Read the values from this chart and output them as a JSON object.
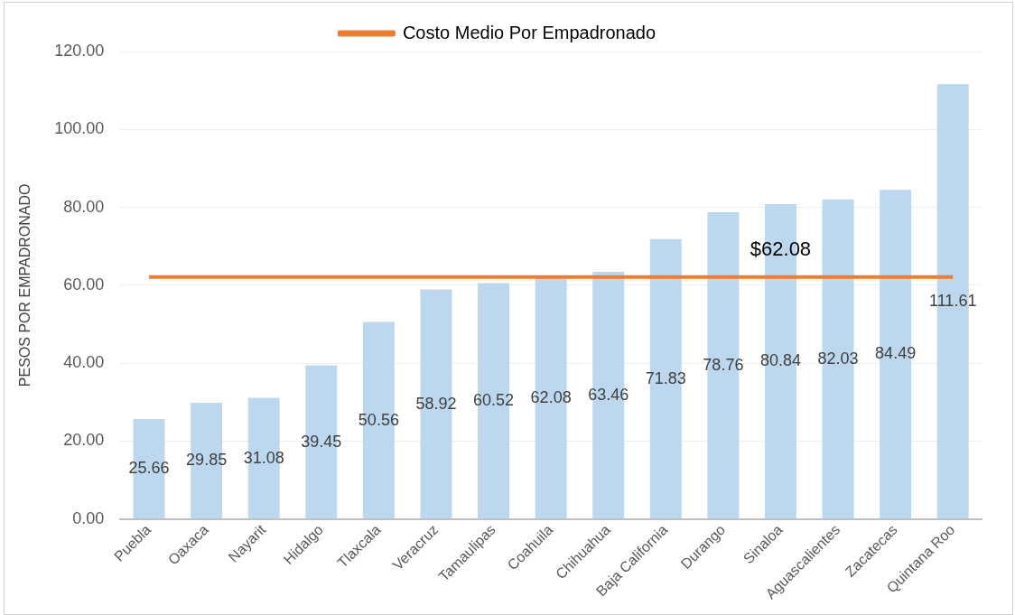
{
  "chart_data": {
    "type": "bar",
    "ylabel": "PESOS POR EMPADRONADO",
    "categories": [
      "Puebla",
      "Oaxaca",
      "Nayarit",
      "Hidalgo",
      "Tlaxcala",
      "Veracruz",
      "Tamaulipas",
      "Coahuila",
      "Chihuahua",
      "Baja California",
      "Durango",
      "Sinaloa",
      "Aguascalientes",
      "Zacatecas",
      "Quintana Roo"
    ],
    "series": [
      {
        "color": "#bdd7ee",
        "values": [
          25.66,
          29.85,
          31.08,
          39.45,
          50.56,
          58.92,
          60.52,
          62.08,
          63.46,
          71.83,
          78.76,
          80.84,
          82.03,
          84.49,
          111.61
        ],
        "data_labels": true
      },
      {
        "type": "line",
        "name": "Costo Medio Por Empadronado",
        "color": "#ed7d31",
        "marker": "none",
        "values": [
          62.08,
          62.08,
          62.08,
          62.08,
          62.08,
          62.08,
          62.08,
          62.08,
          62.08,
          62.08,
          62.08,
          62.08,
          62.08,
          62.08,
          62.08
        ],
        "value_labels": [
          null,
          null,
          null,
          null,
          null,
          null,
          null,
          null,
          null,
          null,
          null,
          "$62.08",
          null,
          null,
          null
        ]
      }
    ],
    "ylim": [
      0,
      120
    ],
    "yticks": [
      {
        "value": 0,
        "label": "0.00"
      },
      {
        "value": 20,
        "label": "20.00"
      },
      {
        "value": 40,
        "label": "40.00"
      },
      {
        "value": 60,
        "label": "60.00"
      },
      {
        "value": 80,
        "label": "80.00"
      },
      {
        "value": 100,
        "label": "100.00"
      },
      {
        "value": 120,
        "label": "120.00"
      }
    ],
    "grid": "y",
    "legend": "top"
  }
}
